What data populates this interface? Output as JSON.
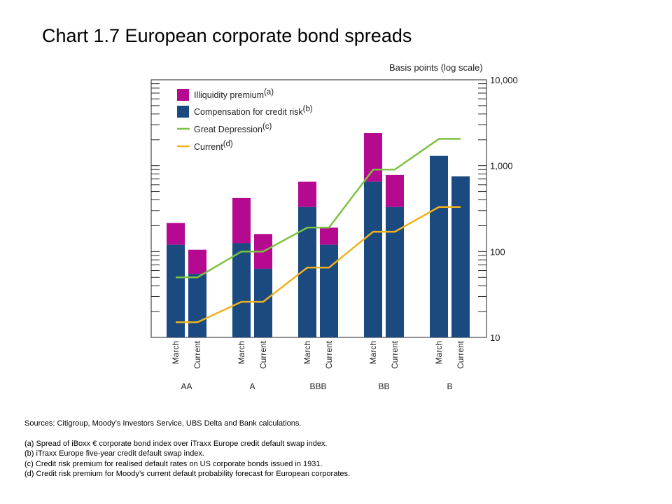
{
  "title": "Chart 1.7  European corporate bond spreads",
  "chart_data": {
    "type": "bar",
    "title": "Chart 1.7  European corporate bond spreads",
    "ylabel": "Basis points (log scale)",
    "yscale": "log",
    "ylim": [
      10,
      10000
    ],
    "yticks": [
      {
        "value": 10,
        "label": "10"
      },
      {
        "value": 100,
        "label": "100"
      },
      {
        "value": 1000,
        "label": "1,000"
      },
      {
        "value": 10000,
        "label": "10,000"
      }
    ],
    "groups": [
      "AA",
      "A",
      "BBB",
      "BB",
      "B"
    ],
    "bar_labels": [
      "March",
      "Current"
    ],
    "stacked_series": [
      {
        "name": "Compensation for credit risk",
        "superscript": "(b)",
        "color": "#1a4a80",
        "values": [
          [
            120,
            55
          ],
          [
            125,
            63
          ],
          [
            330,
            120
          ],
          [
            650,
            330
          ],
          [
            1300,
            750
          ]
        ]
      },
      {
        "name": "Illiquidity premium",
        "superscript": "(a)",
        "color": "#b5098f",
        "values": [
          [
            215,
            105
          ],
          [
            420,
            160
          ],
          [
            650,
            190
          ],
          [
            2400,
            780
          ],
          [
            1300,
            750
          ]
        ]
      }
    ],
    "line_series": [
      {
        "name": "Great Depression",
        "superscript": "(c)",
        "color": "#7dc242",
        "values": [
          50,
          100,
          190,
          900,
          2050
        ]
      },
      {
        "name": "Current",
        "superscript": "(d)",
        "color": "#f0b21c",
        "values": [
          15,
          26,
          65,
          170,
          330
        ]
      }
    ],
    "legend": "top-left"
  },
  "notes": {
    "sources": "Sources:  Citigroup, Moody’s Investors Service, UBS Delta and Bank calculations.",
    "a": "(a)  Spread of iBoxx € corporate bond index over iTraxx Europe credit default swap index.",
    "b": "(b)  iTraxx Europe five-year credit default swap index.",
    "c": "(c)  Credit risk premium for realised default rates on US corporate bonds issued in 1931.",
    "d": "(d)  Credit risk premium  for Moody’s current default probability forecast for European corporates."
  }
}
